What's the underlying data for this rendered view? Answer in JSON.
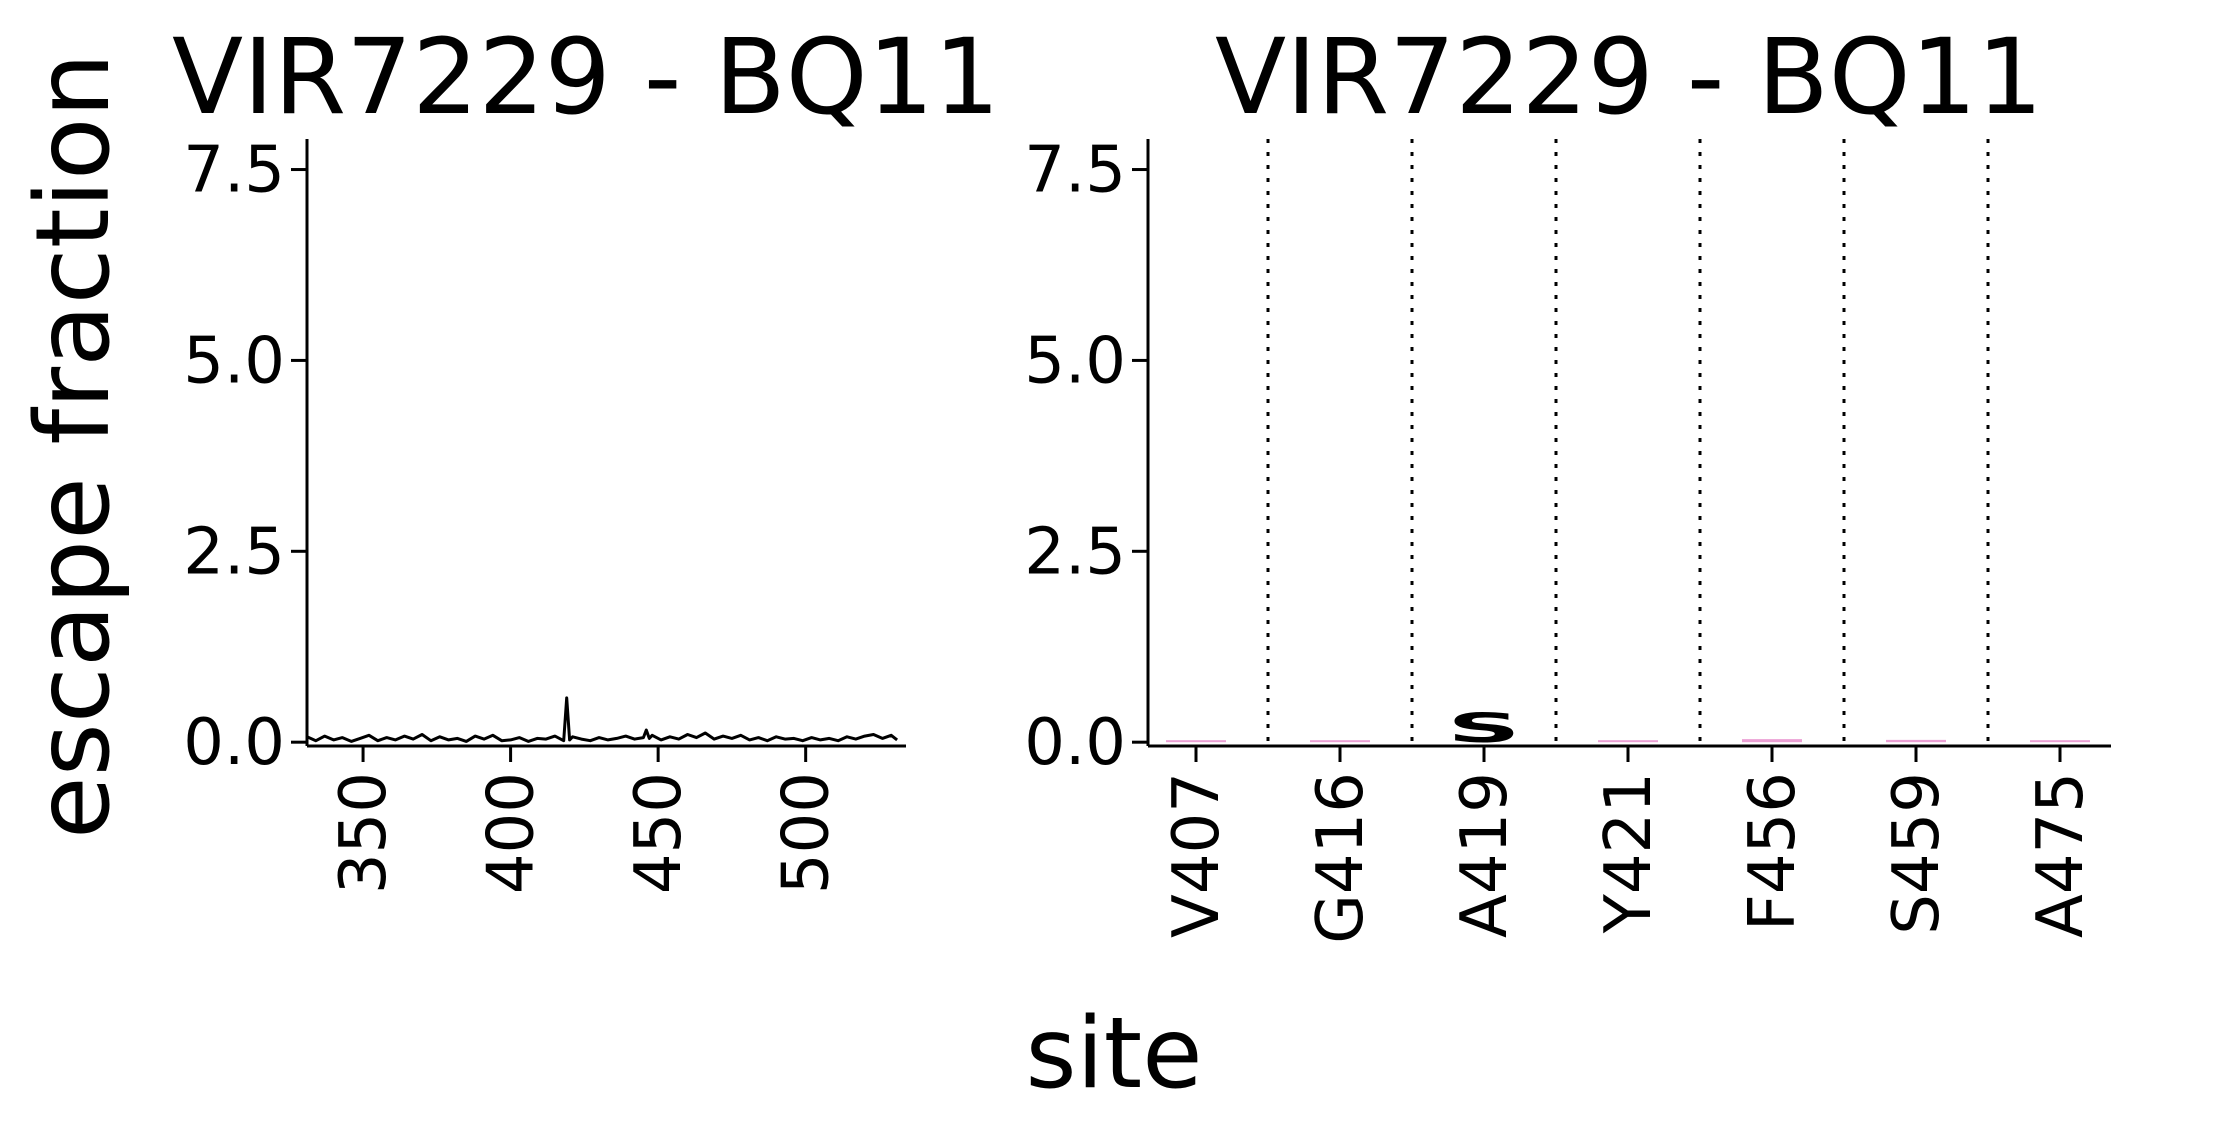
{
  "figure": {
    "ylabel": "escape fraction",
    "xlabel": "site"
  },
  "chart_data": [
    {
      "type": "line",
      "title": "VIR7229 - BQ11",
      "ylabel": "escape fraction",
      "xlabel": "site",
      "xlim": [
        331,
        534
      ],
      "ylim": [
        -0.05,
        7.9
      ],
      "xticks": [
        350,
        400,
        450,
        500
      ],
      "xticklabels": [
        "350",
        "400",
        "450",
        "500"
      ],
      "yticks": [
        0.0,
        2.5,
        5.0,
        7.5
      ],
      "yticklabels": [
        "0.0",
        "2.5",
        "5.0",
        "7.5"
      ],
      "grid": false,
      "color": "#000000",
      "series": [
        {
          "x": [
            331,
            334,
            337,
            340,
            343,
            346,
            349,
            352,
            355,
            358,
            361,
            364,
            367,
            370,
            373,
            376,
            379,
            382,
            385,
            388,
            391,
            394,
            397,
            400,
            403,
            406,
            409,
            412,
            415,
            418,
            419,
            420,
            421,
            424,
            427,
            430,
            433,
            436,
            439,
            442,
            445,
            446,
            447,
            448,
            451,
            454,
            457,
            460,
            463,
            466,
            469,
            472,
            475,
            478,
            481,
            484,
            487,
            490,
            493,
            496,
            499,
            502,
            505,
            508,
            511,
            514,
            517,
            520,
            523,
            526,
            529,
            531
          ],
          "y": [
            0.07,
            0.02,
            0.08,
            0.03,
            0.06,
            0.01,
            0.05,
            0.09,
            0.02,
            0.06,
            0.03,
            0.08,
            0.04,
            0.1,
            0.02,
            0.07,
            0.03,
            0.05,
            0.01,
            0.08,
            0.04,
            0.09,
            0.02,
            0.03,
            0.06,
            0.01,
            0.05,
            0.04,
            0.08,
            0.02,
            0.58,
            0.03,
            0.07,
            0.04,
            0.02,
            0.06,
            0.03,
            0.05,
            0.08,
            0.04,
            0.06,
            0.16,
            0.05,
            0.09,
            0.03,
            0.07,
            0.04,
            0.1,
            0.06,
            0.12,
            0.04,
            0.08,
            0.05,
            0.09,
            0.03,
            0.06,
            0.02,
            0.07,
            0.04,
            0.05,
            0.02,
            0.06,
            0.03,
            0.05,
            0.02,
            0.07,
            0.04,
            0.08,
            0.1,
            0.05,
            0.09,
            0.03
          ]
        }
      ]
    },
    {
      "type": "logo",
      "title": "VIR7229 - BQ11",
      "ylabel": "escape fraction",
      "xlabel": "site",
      "ylim": [
        -0.05,
        7.9
      ],
      "yticks": [
        0.0,
        2.5,
        5.0,
        7.5
      ],
      "yticklabels": [
        "0.0",
        "2.5",
        "5.0",
        "7.5"
      ],
      "grid": false,
      "categories": [
        "V407",
        "G416",
        "A419",
        "Y421",
        "F456",
        "S459",
        "A475"
      ],
      "vertical_separators": "dotted lines between sites",
      "letters": [
        {
          "site": "V407",
          "letter": "",
          "value": 0.02,
          "color": "#e377c2"
        },
        {
          "site": "G416",
          "letter": "",
          "value": 0.0,
          "color": "#e377c2"
        },
        {
          "site": "A419",
          "letter": "S",
          "value": 0.38,
          "color": "#808080"
        },
        {
          "site": "Y421",
          "letter": "",
          "value": 0.01,
          "color": "#e377c2"
        },
        {
          "site": "F456",
          "letter": "",
          "value": 0.04,
          "color": "#e377c2"
        },
        {
          "site": "S459",
          "letter": "",
          "value": 0.03,
          "color": "#e377c2"
        },
        {
          "site": "A475",
          "letter": "",
          "value": 0.02,
          "color": "#e377c2"
        }
      ]
    }
  ]
}
